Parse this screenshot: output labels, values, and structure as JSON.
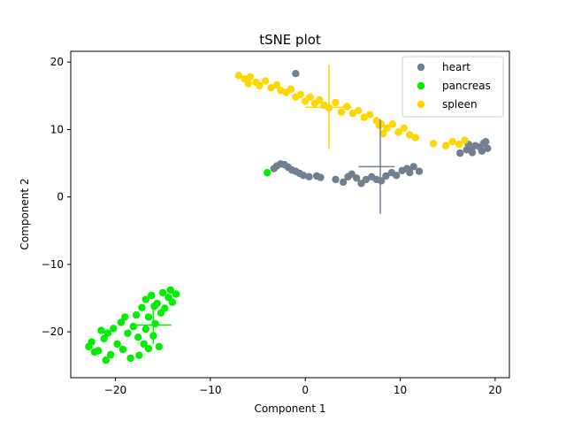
{
  "chart_data": {
    "type": "scatter",
    "title": "tSNE plot",
    "xlabel": "Component 1",
    "ylabel": "Component 2",
    "xlim": [
      -24.7,
      21.5
    ],
    "ylim": [
      -26.8,
      21.6
    ],
    "xticks": [
      -20,
      -10,
      0,
      10,
      20
    ],
    "xtick_labels": [
      "−20",
      "−10",
      "0",
      "10",
      "20"
    ],
    "yticks": [
      -20,
      -10,
      0,
      10,
      20
    ],
    "ytick_labels": [
      "−20",
      "−10",
      "0",
      "10",
      "20"
    ],
    "grid": false,
    "legend_position": "top-right",
    "series": [
      {
        "name": "heart",
        "color": "#708090",
        "points": [
          [
            -1.0,
            18.3
          ],
          [
            -3.0,
            4.6
          ],
          [
            -2.6,
            4.9
          ],
          [
            -2.2,
            4.8
          ],
          [
            -3.3,
            4.2
          ],
          [
            -1.8,
            4.4
          ],
          [
            -1.4,
            4.0
          ],
          [
            -1.0,
            3.8
          ],
          [
            -0.6,
            3.5
          ],
          [
            -0.2,
            3.2
          ],
          [
            0.4,
            3.0
          ],
          [
            1.2,
            3.1
          ],
          [
            1.6,
            2.9
          ],
          [
            3.2,
            2.6
          ],
          [
            4.0,
            2.2
          ],
          [
            4.5,
            3.0
          ],
          [
            4.9,
            3.4
          ],
          [
            5.4,
            2.8
          ],
          [
            5.9,
            2.0
          ],
          [
            6.4,
            2.6
          ],
          [
            7.0,
            3.0
          ],
          [
            7.5,
            2.6
          ],
          [
            8.0,
            2.4
          ],
          [
            8.5,
            3.1
          ],
          [
            9.1,
            3.6
          ],
          [
            9.6,
            3.2
          ],
          [
            10.2,
            3.9
          ],
          [
            10.7,
            4.2
          ],
          [
            11.0,
            3.6
          ],
          [
            11.4,
            4.5
          ],
          [
            12.0,
            3.8
          ],
          [
            16.3,
            6.5
          ],
          [
            17.0,
            7.0
          ],
          [
            17.5,
            7.2
          ],
          [
            17.9,
            7.6
          ],
          [
            18.4,
            7.4
          ],
          [
            18.8,
            8.0
          ],
          [
            19.2,
            7.2
          ],
          [
            17.6,
            6.6
          ],
          [
            18.6,
            6.8
          ],
          [
            17.2,
            7.8
          ],
          [
            19.0,
            8.2
          ]
        ],
        "centroid": [
          7.9,
          4.5
        ],
        "error_x": [
          5.6,
          9.4
        ],
        "error_y": [
          -2.5,
          11.5
        ]
      },
      {
        "name": "pancreas",
        "color": "#00ee00",
        "points": [
          [
            -4.0,
            3.6
          ],
          [
            -22.5,
            -21.5
          ],
          [
            -21.8,
            -22.8
          ],
          [
            -21.2,
            -21.0
          ],
          [
            -20.5,
            -23.4
          ],
          [
            -19.8,
            -21.8
          ],
          [
            -21.0,
            -24.2
          ],
          [
            -22.2,
            -23.0
          ],
          [
            -20.2,
            -19.5
          ],
          [
            -19.4,
            -18.6
          ],
          [
            -18.7,
            -20.2
          ],
          [
            -18.1,
            -19.2
          ],
          [
            -17.5,
            -23.5
          ],
          [
            -17.0,
            -21.8
          ],
          [
            -16.5,
            -22.5
          ],
          [
            -16.0,
            -20.6
          ],
          [
            -15.4,
            -22.2
          ],
          [
            -17.8,
            -17.5
          ],
          [
            -17.2,
            -16.4
          ],
          [
            -16.5,
            -17.8
          ],
          [
            -15.8,
            -18.8
          ],
          [
            -15.2,
            -17.2
          ],
          [
            -16.8,
            -15.2
          ],
          [
            -16.2,
            -14.6
          ],
          [
            -15.6,
            -15.8
          ],
          [
            -14.8,
            -16.5
          ],
          [
            -14.4,
            -14.9
          ],
          [
            -14.0,
            -15.6
          ],
          [
            -13.6,
            -14.4
          ],
          [
            -14.2,
            -13.8
          ],
          [
            -15.0,
            -14.2
          ],
          [
            -18.4,
            -23.9
          ],
          [
            -19.2,
            -22.6
          ],
          [
            -20.8,
            -20.2
          ],
          [
            -21.5,
            -19.8
          ],
          [
            -19.0,
            -17.8
          ],
          [
            -16.8,
            -19.6
          ],
          [
            -17.6,
            -20.8
          ],
          [
            -15.9,
            -16.2
          ],
          [
            -22.8,
            -22.2
          ]
        ],
        "centroid": [
          -16.0,
          -19.0
        ],
        "error_x": [
          -17.9,
          -14.1
        ],
        "error_y": [
          -21.8,
          -16.2
        ]
      },
      {
        "name": "spleen",
        "color": "#ffd700",
        "points": [
          [
            -7.0,
            18.0
          ],
          [
            -6.4,
            17.5
          ],
          [
            -5.8,
            17.8
          ],
          [
            -5.2,
            17.0
          ],
          [
            -4.8,
            16.5
          ],
          [
            -4.2,
            17.2
          ],
          [
            -3.6,
            16.2
          ],
          [
            -3.0,
            16.6
          ],
          [
            -2.6,
            15.8
          ],
          [
            -2.0,
            15.5
          ],
          [
            -1.5,
            16.0
          ],
          [
            -1.0,
            14.8
          ],
          [
            -0.5,
            15.2
          ],
          [
            0.0,
            14.2
          ],
          [
            0.5,
            14.8
          ],
          [
            1.0,
            13.9
          ],
          [
            1.5,
            14.4
          ],
          [
            2.0,
            13.6
          ],
          [
            2.5,
            13.2
          ],
          [
            3.2,
            14.0
          ],
          [
            3.8,
            12.6
          ],
          [
            4.4,
            13.4
          ],
          [
            5.0,
            12.4
          ],
          [
            5.6,
            12.8
          ],
          [
            6.2,
            11.8
          ],
          [
            6.8,
            12.2
          ],
          [
            7.5,
            11.3
          ],
          [
            8.0,
            10.8
          ],
          [
            8.6,
            10.2
          ],
          [
            9.2,
            10.8
          ],
          [
            9.8,
            9.6
          ],
          [
            10.4,
            10.2
          ],
          [
            11.0,
            9.2
          ],
          [
            11.6,
            8.8
          ],
          [
            13.5,
            7.9
          ],
          [
            14.8,
            7.6
          ],
          [
            15.5,
            8.2
          ],
          [
            16.2,
            7.8
          ],
          [
            16.8,
            8.4
          ],
          [
            8.2,
            9.4
          ],
          [
            7.8,
            10.6
          ],
          [
            -6.0,
            16.8
          ]
        ],
        "centroid": [
          2.5,
          13.3
        ],
        "error_x": [
          0.0,
          4.9
        ],
        "error_y": [
          7.1,
          19.6
        ]
      }
    ]
  }
}
